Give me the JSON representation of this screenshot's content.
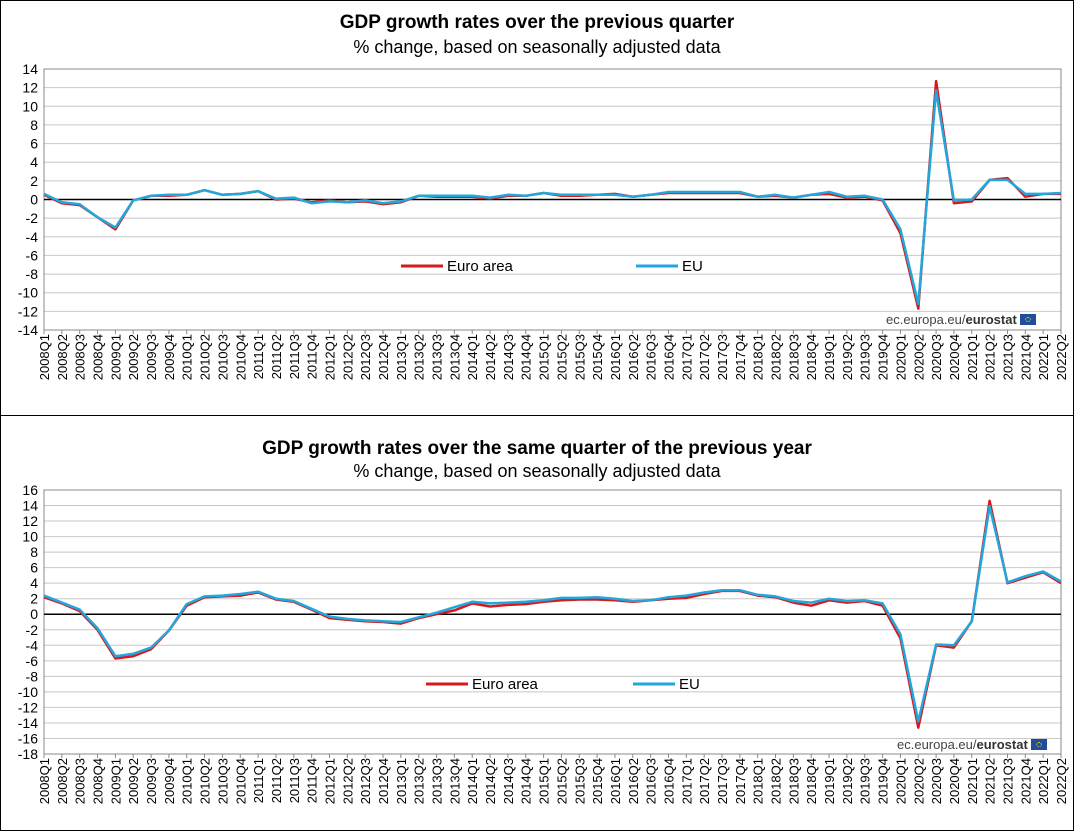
{
  "chart_data": [
    {
      "type": "line",
      "title": "GDP growth rates over the previous quarter",
      "subtitle": "% change, based on seasonally adjusted data",
      "watermark_text": "ec.europa.eu/",
      "watermark_brand": "eurostat",
      "ylim": [
        -14,
        14
      ],
      "yticks": [
        14,
        12,
        10,
        8,
        6,
        4,
        2,
        0,
        -2,
        -4,
        -6,
        -8,
        -10,
        -12,
        -14
      ],
      "categories": [
        "2008Q1",
        "2008Q2",
        "2008Q3",
        "2008Q4",
        "2009Q1",
        "2009Q2",
        "2009Q3",
        "2009Q4",
        "2010Q1",
        "2010Q2",
        "2010Q3",
        "2010Q4",
        "2011Q1",
        "2011Q2",
        "2011Q3",
        "2011Q4",
        "2012Q1",
        "2012Q2",
        "2012Q3",
        "2012Q4",
        "2013Q1",
        "2013Q2",
        "2013Q3",
        "2013Q4",
        "2014Q1",
        "2014Q2",
        "2014Q3",
        "2014Q4",
        "2015Q1",
        "2015Q2",
        "2015Q3",
        "2015Q4",
        "2016Q1",
        "2016Q2",
        "2016Q3",
        "2016Q4",
        "2017Q1",
        "2017Q2",
        "2017Q3",
        "2017Q4",
        "2018Q1",
        "2018Q2",
        "2018Q3",
        "2018Q4",
        "2019Q1",
        "2019Q2",
        "2019Q3",
        "2019Q4",
        "2020Q1",
        "2020Q2",
        "2020Q3",
        "2020Q4",
        "2021Q1",
        "2021Q2",
        "2021Q3",
        "2021Q4",
        "2022Q1",
        "2022Q2"
      ],
      "legend": [
        "Euro area",
        "EU"
      ],
      "series": [
        {
          "name": "Euro area",
          "color": "#d7191c",
          "values": [
            0.5,
            -0.4,
            -0.6,
            -1.9,
            -3.2,
            -0.1,
            0.4,
            0.4,
            0.5,
            1.0,
            0.5,
            0.6,
            0.9,
            0.0,
            0.1,
            -0.3,
            -0.1,
            -0.3,
            -0.2,
            -0.5,
            -0.3,
            0.4,
            0.3,
            0.3,
            0.3,
            0.1,
            0.4,
            0.4,
            0.7,
            0.4,
            0.4,
            0.5,
            0.6,
            0.3,
            0.5,
            0.7,
            0.7,
            0.7,
            0.7,
            0.7,
            0.3,
            0.4,
            0.2,
            0.5,
            0.6,
            0.2,
            0.3,
            -0.1,
            -3.6,
            -11.7,
            12.7,
            -0.4,
            -0.2,
            2.1,
            2.3,
            0.3,
            0.6,
            0.6
          ]
        },
        {
          "name": "EU",
          "color": "#22a7dd",
          "values": [
            0.6,
            -0.3,
            -0.5,
            -1.9,
            -3.0,
            -0.1,
            0.4,
            0.5,
            0.5,
            1.0,
            0.5,
            0.6,
            0.9,
            0.1,
            0.2,
            -0.4,
            -0.2,
            -0.3,
            -0.1,
            -0.4,
            -0.2,
            0.4,
            0.4,
            0.4,
            0.4,
            0.2,
            0.5,
            0.4,
            0.7,
            0.5,
            0.5,
            0.5,
            0.5,
            0.3,
            0.5,
            0.8,
            0.8,
            0.8,
            0.8,
            0.8,
            0.3,
            0.5,
            0.2,
            0.5,
            0.8,
            0.3,
            0.4,
            0.0,
            -3.2,
            -11.2,
            11.7,
            -0.1,
            0.0,
            2.1,
            2.1,
            0.6,
            0.6,
            0.7
          ]
        }
      ]
    },
    {
      "type": "line",
      "title": "GDP growth rates over the same quarter of the previous year",
      "subtitle": "% change, based on seasonally adjusted data",
      "watermark_text": "ec.europa.eu/",
      "watermark_brand": "eurostat",
      "ylim": [
        -18,
        16
      ],
      "yticks": [
        16,
        14,
        12,
        10,
        8,
        6,
        4,
        2,
        0,
        -2,
        -4,
        -6,
        -8,
        -10,
        -12,
        -14,
        -16,
        -18
      ],
      "categories": [
        "2008Q1",
        "2008Q2",
        "2008Q3",
        "2008Q4",
        "2009Q1",
        "2009Q2",
        "2009Q3",
        "2009Q4",
        "2010Q1",
        "2010Q2",
        "2010Q3",
        "2010Q4",
        "2011Q1",
        "2011Q2",
        "2011Q3",
        "2011Q4",
        "2012Q1",
        "2012Q2",
        "2012Q3",
        "2012Q4",
        "2013Q1",
        "2013Q2",
        "2013Q3",
        "2013Q4",
        "2014Q1",
        "2014Q2",
        "2014Q3",
        "2014Q4",
        "2015Q1",
        "2015Q2",
        "2015Q3",
        "2015Q4",
        "2016Q1",
        "2016Q2",
        "2016Q3",
        "2016Q4",
        "2017Q1",
        "2017Q2",
        "2017Q3",
        "2017Q4",
        "2018Q1",
        "2018Q2",
        "2018Q3",
        "2018Q4",
        "2019Q1",
        "2019Q2",
        "2019Q3",
        "2019Q4",
        "2020Q1",
        "2020Q2",
        "2020Q3",
        "2020Q4",
        "2021Q1",
        "2021Q2",
        "2021Q3",
        "2021Q4",
        "2022Q1",
        "2022Q2"
      ],
      "legend": [
        "Euro area",
        "EU"
      ],
      "series": [
        {
          "name": "Euro area",
          "color": "#d7191c",
          "values": [
            2.2,
            1.4,
            0.4,
            -2.0,
            -5.7,
            -5.4,
            -4.5,
            -2.1,
            1.1,
            2.2,
            2.3,
            2.4,
            2.8,
            1.9,
            1.6,
            0.6,
            -0.5,
            -0.7,
            -0.9,
            -1.0,
            -1.2,
            -0.5,
            0.0,
            0.5,
            1.4,
            1.0,
            1.2,
            1.3,
            1.6,
            1.8,
            1.9,
            1.9,
            1.8,
            1.6,
            1.8,
            2.0,
            2.1,
            2.6,
            3.0,
            3.0,
            2.4,
            2.2,
            1.5,
            1.1,
            1.8,
            1.5,
            1.7,
            1.1,
            -3.1,
            -14.6,
            -4.0,
            -4.3,
            -0.9,
            14.6,
            4.0,
            4.7,
            5.4,
            4.0
          ]
        },
        {
          "name": "EU",
          "color": "#22a7dd",
          "values": [
            2.4,
            1.5,
            0.6,
            -1.8,
            -5.4,
            -5.1,
            -4.3,
            -2.1,
            1.3,
            2.3,
            2.4,
            2.6,
            2.9,
            2.0,
            1.7,
            0.7,
            -0.3,
            -0.6,
            -0.8,
            -0.9,
            -1.0,
            -0.4,
            0.2,
            0.9,
            1.6,
            1.4,
            1.5,
            1.6,
            1.8,
            2.1,
            2.1,
            2.2,
            2.0,
            1.7,
            1.8,
            2.2,
            2.4,
            2.8,
            3.1,
            3.1,
            2.5,
            2.3,
            1.7,
            1.5,
            2.0,
            1.7,
            1.8,
            1.4,
            -2.6,
            -13.8,
            -3.9,
            -4.0,
            -0.9,
            13.9,
            4.1,
            4.9,
            5.5,
            4.2
          ]
        }
      ]
    }
  ]
}
